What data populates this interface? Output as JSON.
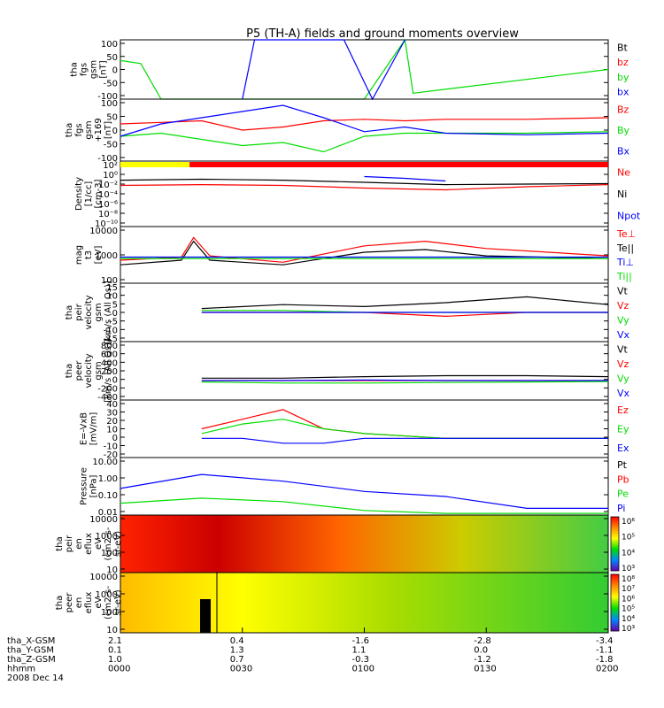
{
  "title": "P5 (TH-A) fields and ground moments overview",
  "colors": {
    "black": "#000000",
    "red": "#ff0000",
    "green": "#00dd00",
    "blue": "#0000ff",
    "yellow": "#ffff00",
    "panel_bg": "#ffffff"
  },
  "time_axis": {
    "tick_labels": [
      "0000",
      "0030",
      "0100",
      "0130",
      "0200"
    ],
    "rows": [
      {
        "label": "tha_X-GSM",
        "values": [
          "2.1",
          "0.4",
          "-1.6",
          "-2.8",
          "-3.4"
        ]
      },
      {
        "label": "tha_Y-GSM",
        "values": [
          "0.1",
          "1.3",
          "1.1",
          "0.0",
          "-1.1"
        ]
      },
      {
        "label": "tha_Z-GSM",
        "values": [
          "1.0",
          "0.7",
          "-0.3",
          "-1.2",
          "-1.8"
        ]
      },
      {
        "label": "hhmm",
        "values": [
          "0000",
          "0030",
          "0100",
          "0130",
          "0200"
        ]
      }
    ],
    "date": "2008 Dec 14"
  },
  "chart_data": [
    {
      "type": "line",
      "ylabel": [
        "tha",
        "fgs",
        "gsm",
        "[nT]"
      ],
      "ylim": [
        -100,
        100
      ],
      "yticks": [
        "100",
        "50",
        "0",
        "-50",
        "-100"
      ],
      "series": [
        {
          "name": "Bt",
          "color": "#000000",
          "x": [
            0,
            120
          ],
          "y": [
            0,
            0
          ]
        },
        {
          "name": "bz",
          "color": "#ff0000",
          "x": [
            0,
            120
          ],
          "y": [
            0,
            0
          ]
        },
        {
          "name": "by",
          "color": "#00dd00",
          "x": [
            0,
            5,
            10,
            60,
            70,
            72,
            120
          ],
          "y": [
            30,
            20,
            -100,
            -100,
            100,
            -80,
            0
          ]
        },
        {
          "name": "bx",
          "color": "#0000ff",
          "x": [
            30,
            33,
            55,
            62,
            70
          ],
          "y": [
            -100,
            100,
            100,
            -100,
            100
          ]
        }
      ]
    },
    {
      "type": "line",
      "ylabel": [
        "tha",
        "fgs",
        "gsm",
        "+169",
        "[nT]"
      ],
      "ylim": [
        -100,
        100
      ],
      "yticks": [
        "100",
        "50",
        "0",
        "-50",
        "-100"
      ],
      "series": [
        {
          "name": "Bz",
          "color": "#ff0000",
          "x": [
            0,
            10,
            20,
            30,
            40,
            50,
            60,
            70,
            80,
            100,
            120
          ],
          "y": [
            20,
            25,
            30,
            0,
            10,
            30,
            35,
            30,
            35,
            35,
            40
          ]
        },
        {
          "name": "By",
          "color": "#00dd00",
          "x": [
            0,
            10,
            20,
            30,
            40,
            50,
            60,
            70,
            80,
            100,
            120
          ],
          "y": [
            -20,
            -10,
            -30,
            -50,
            -40,
            -70,
            -20,
            -10,
            -10,
            -10,
            -5
          ]
        },
        {
          "name": "Bx",
          "color": "#0000ff",
          "x": [
            0,
            10,
            20,
            30,
            40,
            50,
            60,
            70,
            80,
            100,
            120
          ],
          "y": [
            -20,
            20,
            40,
            60,
            80,
            40,
            -5,
            10,
            -10,
            -15,
            -10
          ]
        }
      ]
    },
    {
      "type": "line",
      "ylabel": [
        "Density",
        "[1/cc]",
        "[cm-3]"
      ],
      "yscale": "log",
      "ylim": [
        1e-10,
        1000
      ],
      "yticks": [
        "10²",
        "10⁰",
        "10⁻²",
        "10⁻⁴",
        "10⁻⁶",
        "10⁻⁸",
        "10⁻¹⁰"
      ],
      "flag_bar": [
        {
          "color": "#ffff00",
          "x": [
            0,
            17
          ]
        },
        {
          "color": "#ff0000",
          "x": [
            17,
            120
          ]
        }
      ],
      "series": [
        {
          "name": "Ne",
          "color": "#ff0000",
          "x": [
            0,
            20,
            40,
            60,
            80,
            100,
            120
          ],
          "y": [
            0.2,
            0.3,
            0.2,
            0.05,
            0.02,
            0.1,
            0.3
          ]
        },
        {
          "name": "Ni",
          "color": "#000000",
          "x": [
            0,
            20,
            40,
            60,
            80,
            100,
            120
          ],
          "y": [
            3,
            5,
            3,
            1,
            0.3,
            0.4,
            0.5
          ]
        },
        {
          "name": "Npot",
          "color": "#0000ff",
          "x": [
            60,
            70,
            80
          ],
          "y": [
            20,
            8,
            2
          ]
        }
      ]
    },
    {
      "type": "line",
      "ylabel": [
        "mag",
        "t3",
        "[eV]"
      ],
      "yscale": "log",
      "ylim": [
        20,
        10000
      ],
      "yticks": [
        "10000",
        "1000",
        "100"
      ],
      "series": [
        {
          "name": "Te⊥",
          "color": "#ff0000",
          "x": [
            0,
            15,
            18,
            22,
            40,
            60,
            75,
            90,
            120
          ],
          "y": [
            250,
            350,
            3000,
            400,
            200,
            1200,
            2000,
            900,
            400
          ]
        },
        {
          "name": "Te||",
          "color": "#000000",
          "x": [
            0,
            15,
            18,
            22,
            40,
            60,
            75,
            90,
            120
          ],
          "y": [
            150,
            250,
            2000,
            250,
            150,
            600,
            800,
            400,
            300
          ]
        },
        {
          "name": "Ti⊥",
          "color": "#0000ff",
          "x": [
            0,
            30,
            60,
            90,
            120
          ],
          "y": [
            350,
            350,
            350,
            350,
            350
          ]
        },
        {
          "name": "Ti||",
          "color": "#00dd00",
          "x": [
            0,
            30,
            60,
            90,
            120
          ],
          "y": [
            300,
            300,
            300,
            300,
            300
          ]
        }
      ]
    },
    {
      "type": "line",
      "ylabel": [
        "tha",
        "peir",
        "velocity",
        "gsm",
        "[km/s (All Qs)]"
      ],
      "ylim": [
        -15,
        15
      ],
      "yticks": [
        "15",
        "10",
        "5",
        "0",
        "-5",
        "-10",
        "-15"
      ],
      "series": [
        {
          "name": "Vt",
          "color": "#000000",
          "x": [
            20,
            40,
            60,
            80,
            100,
            120
          ],
          "y": [
            2,
            4,
            3,
            5,
            8,
            4
          ]
        },
        {
          "name": "Vz",
          "color": "#ff0000",
          "x": [
            20,
            40,
            60,
            80,
            100,
            120
          ],
          "y": [
            0,
            0,
            0,
            -2,
            0,
            0
          ]
        },
        {
          "name": "Vy",
          "color": "#00dd00",
          "x": [
            20,
            40,
            60,
            80,
            100,
            120
          ],
          "y": [
            1,
            1,
            0,
            0,
            0,
            0
          ]
        },
        {
          "name": "Vx",
          "color": "#0000ff",
          "x": [
            20,
            40,
            60,
            80,
            100,
            120
          ],
          "y": [
            0,
            0,
            0,
            0,
            0,
            0
          ]
        }
      ]
    },
    {
      "type": "line",
      "ylabel": [
        "tha",
        "peer",
        "velocity",
        "gsm",
        "[km/s (All Qs)]"
      ],
      "ylim": [
        -400,
        800
      ],
      "yticks": [
        "800",
        "600",
        "400",
        "200",
        "0",
        "-200",
        "-400"
      ],
      "series": [
        {
          "name": "Vt",
          "color": "#000000",
          "x": [
            20,
            40,
            60,
            80,
            100,
            120
          ],
          "y": [
            50,
            50,
            80,
            100,
            100,
            80
          ]
        },
        {
          "name": "Vz",
          "color": "#ff0000",
          "x": [
            20,
            40,
            60,
            80,
            100,
            120
          ],
          "y": [
            0,
            0,
            0,
            0,
            0,
            0
          ]
        },
        {
          "name": "Vy",
          "color": "#00dd00",
          "x": [
            20,
            40,
            60,
            80,
            100,
            120
          ],
          "y": [
            -30,
            -50,
            -50,
            -40,
            -30,
            -20
          ]
        },
        {
          "name": "Vx",
          "color": "#0000ff",
          "x": [
            20,
            40,
            60,
            80,
            100,
            120
          ],
          "y": [
            0,
            0,
            10,
            0,
            0,
            0
          ]
        }
      ]
    },
    {
      "type": "line",
      "ylabel": [
        "E=-VxB",
        "[mV/m]"
      ],
      "ylim": [
        -20,
        40
      ],
      "yticks": [
        "40",
        "30",
        "20",
        "10",
        "0",
        "-10",
        "-20"
      ],
      "series": [
        {
          "name": "Ez",
          "color": "#ff0000",
          "x": [
            20,
            30,
            40,
            50,
            60,
            80,
            100,
            120
          ],
          "y": [
            10,
            20,
            30,
            10,
            5,
            0,
            0,
            0
          ]
        },
        {
          "name": "Ey",
          "color": "#00dd00",
          "x": [
            20,
            30,
            40,
            50,
            60,
            80,
            100,
            120
          ],
          "y": [
            5,
            15,
            20,
            10,
            5,
            0,
            0,
            0
          ]
        },
        {
          "name": "Ex",
          "color": "#0000ff",
          "x": [
            20,
            30,
            40,
            50,
            60,
            80,
            100,
            120
          ],
          "y": [
            0,
            0,
            -5,
            -5,
            0,
            0,
            0,
            0
          ]
        }
      ]
    },
    {
      "type": "line",
      "ylabel": [
        "Pressure",
        "[nPa]"
      ],
      "yscale": "log",
      "ylim": [
        0.008,
        20
      ],
      "yticks": [
        "10.00",
        "1.00",
        "0.10",
        "0.01"
      ],
      "series": [
        {
          "name": "Pt",
          "color": "#000000",
          "x": [
            0,
            120
          ],
          "y": [
            0,
            0
          ]
        },
        {
          "name": "Pb",
          "color": "#ff0000",
          "x": [
            0,
            120
          ],
          "y": [
            0,
            0
          ]
        },
        {
          "name": "Pe",
          "color": "#00dd00",
          "x": [
            0,
            20,
            40,
            60,
            80,
            100,
            120
          ],
          "y": [
            0.04,
            0.08,
            0.05,
            0.015,
            0.01,
            0.01,
            0.01
          ]
        },
        {
          "name": "Pi",
          "color": "#0000ff",
          "x": [
            0,
            20,
            40,
            60,
            80,
            100,
            120
          ],
          "y": [
            0.3,
            2,
            0.8,
            0.2,
            0.1,
            0.02,
            0.02
          ]
        }
      ]
    },
    {
      "type": "heatmap",
      "ylabel": [
        "tha",
        "peir",
        "en",
        "eflux",
        "eV",
        "(cm2-s-",
        "sr-eV)"
      ],
      "yscale": "log",
      "yticks": [
        "10000",
        "1000",
        "100",
        "10"
      ],
      "colorbar_ticks": [
        "10⁶",
        "10⁵",
        "10⁴",
        "10³"
      ]
    },
    {
      "type": "heatmap",
      "ylabel": [
        "tha",
        "peer",
        "en",
        "eflux",
        "eV",
        "(cm2-s-",
        "sr-eV)"
      ],
      "yscale": "log",
      "yticks": [
        "10000",
        "1000",
        "100",
        "10"
      ],
      "colorbar_ticks": [
        "10⁸",
        "10⁷",
        "10⁶",
        "10⁵",
        "10⁴",
        "10³"
      ]
    }
  ]
}
